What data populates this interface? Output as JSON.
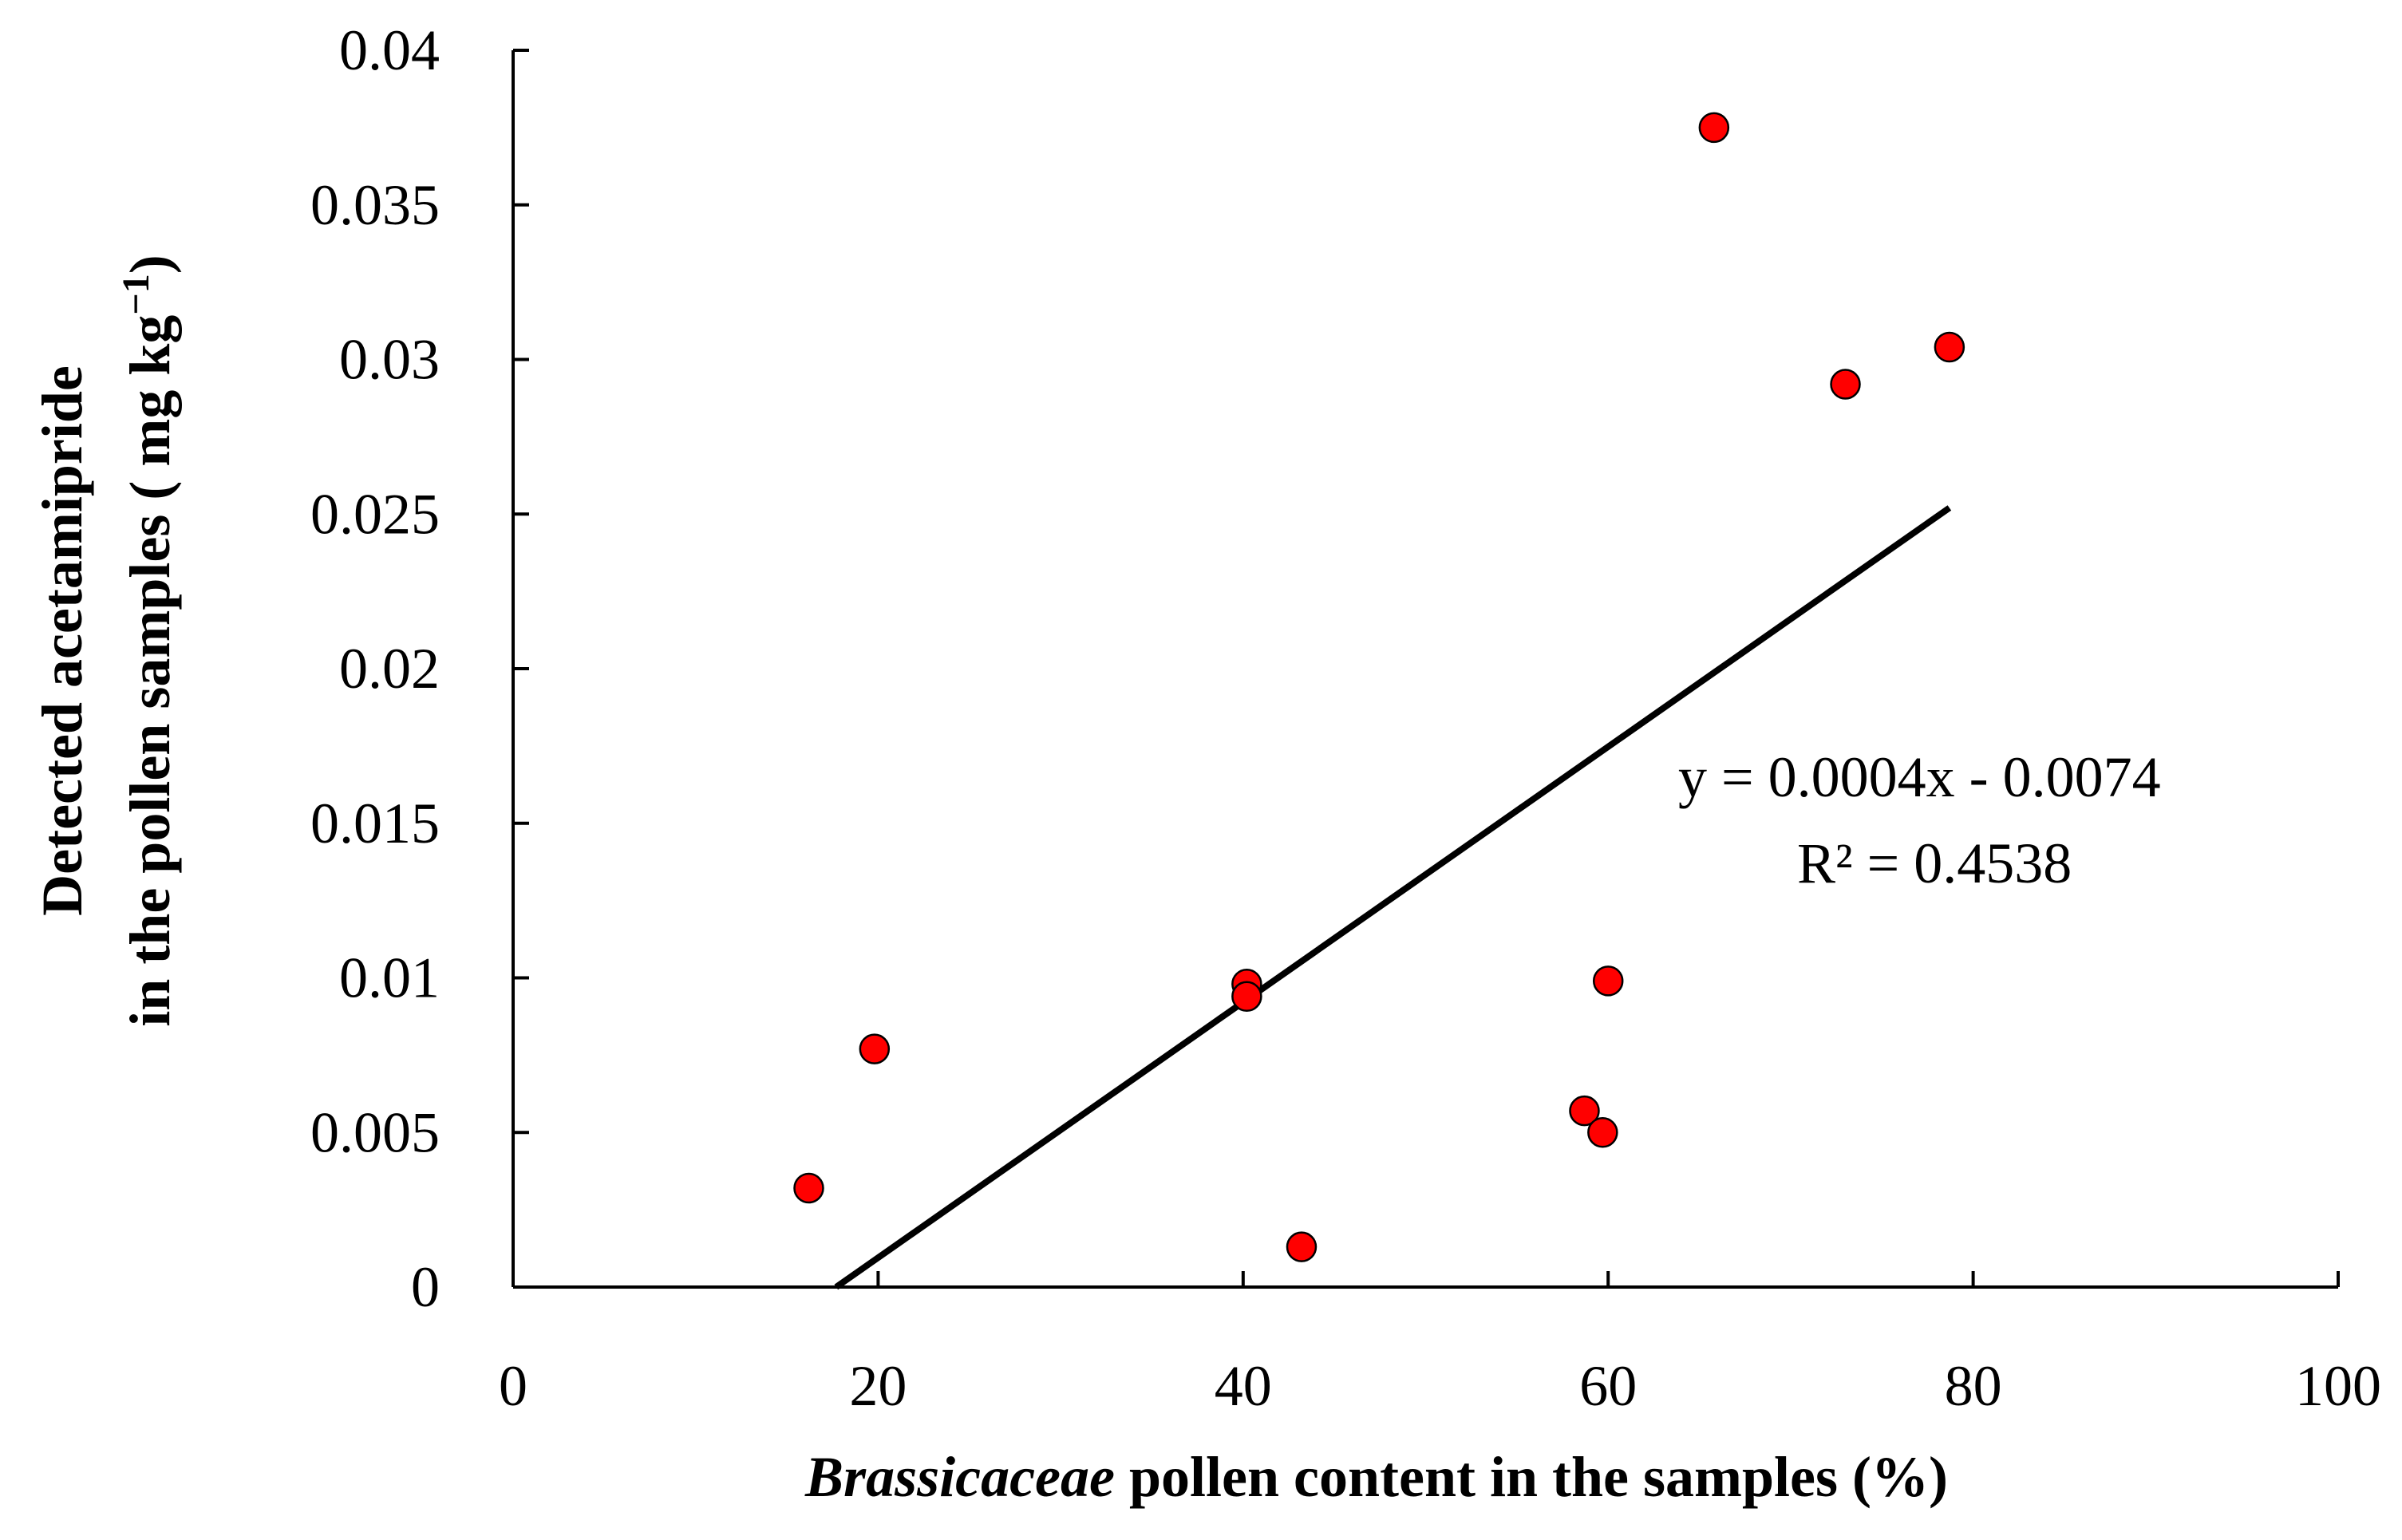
{
  "chart_data": {
    "type": "scatter",
    "title": "",
    "xlabel_italic": "Brassicaceae",
    "xlabel_rest": " pollen content in the samples (%)",
    "ylabel_line1": "Detected acetamipride",
    "ylabel_line2_main": "in the pollen samples ( mg kg",
    "ylabel_line2_sup": "−1",
    "ylabel_line2_end": ")",
    "xlim": [
      0,
      100
    ],
    "ylim": [
      0,
      0.04
    ],
    "x_ticks": [
      0,
      20,
      40,
      60,
      80,
      100
    ],
    "x_tick_labels": [
      "0",
      "20",
      "40",
      "60",
      "80",
      "100"
    ],
    "y_ticks": [
      0,
      0.005,
      0.01,
      0.015,
      0.02,
      0.025,
      0.03,
      0.035,
      0.04
    ],
    "y_tick_labels": [
      "0",
      "0.005",
      "0.01",
      "0.015",
      "0.02",
      "0.025",
      "0.03",
      "0.035",
      "0.04"
    ],
    "grid": false,
    "point_color": "#ff0000",
    "points": [
      {
        "x": 16.2,
        "y": 0.0032
      },
      {
        "x": 19.8,
        "y": 0.0077
      },
      {
        "x": 40.2,
        "y": 0.0098
      },
      {
        "x": 40.2,
        "y": 0.0094
      },
      {
        "x": 43.2,
        "y": 0.0013
      },
      {
        "x": 58.7,
        "y": 0.0057
      },
      {
        "x": 59.7,
        "y": 0.005
      },
      {
        "x": 60.0,
        "y": 0.0099
      },
      {
        "x": 65.8,
        "y": 0.0375
      },
      {
        "x": 73.0,
        "y": 0.0292
      },
      {
        "x": 78.7,
        "y": 0.0304
      }
    ],
    "trendline": {
      "x_start": 17.7,
      "y_start": 0,
      "x_end": 78.7,
      "y_end": 0.0252,
      "equation": "y = 0.0004x - 0.0074",
      "r2": "R² = 0.4538"
    }
  }
}
